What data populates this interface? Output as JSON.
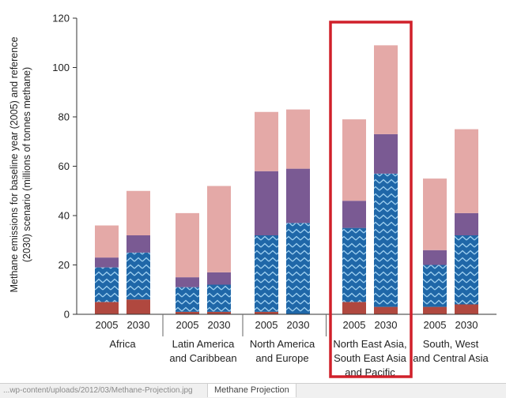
{
  "chart_data": {
    "type": "stacked-bar",
    "ylabel_lines": [
      "Methane emissions for baseline year (2005) and reference",
      "(2030) scenario (millions of tonnes methane)"
    ],
    "ylim": [
      0,
      120
    ],
    "yticks": [
      0,
      20,
      40,
      60,
      80,
      100,
      120
    ],
    "layers": [
      {
        "name": "layer-1",
        "color": "#b0483f"
      },
      {
        "name": "layer-2",
        "color": "#1f67a8",
        "pattern": "chevron"
      },
      {
        "name": "layer-3",
        "color": "#7a5a93"
      },
      {
        "name": "layer-4",
        "color": "#e4a9a7"
      }
    ],
    "groups": [
      {
        "label_lines": [
          "Africa"
        ],
        "bars": [
          {
            "year": "2005",
            "values": [
              5,
              14,
              4,
              13
            ]
          },
          {
            "year": "2030",
            "values": [
              6,
              19,
              7,
              18
            ]
          }
        ]
      },
      {
        "label_lines": [
          "Latin America",
          "and Caribbean"
        ],
        "bars": [
          {
            "year": "2005",
            "values": [
              1,
              10,
              4,
              26
            ]
          },
          {
            "year": "2030",
            "values": [
              1,
              11,
              5,
              35
            ]
          }
        ]
      },
      {
        "label_lines": [
          "North America",
          "and Europe"
        ],
        "bars": [
          {
            "year": "2005",
            "values": [
              1,
              31,
              26,
              24
            ]
          },
          {
            "year": "2030",
            "values": [
              0,
              37,
              22,
              24
            ]
          }
        ]
      },
      {
        "label_lines": [
          "North East Asia,",
          "South East Asia",
          "and Pacific"
        ],
        "highlight": true,
        "bars": [
          {
            "year": "2005",
            "values": [
              5,
              30,
              11,
              33
            ]
          },
          {
            "year": "2030",
            "values": [
              3,
              54,
              16,
              36
            ]
          }
        ]
      },
      {
        "label_lines": [
          "South, West",
          "and Central Asia"
        ],
        "bars": [
          {
            "year": "2005",
            "values": [
              3,
              17,
              6,
              29
            ]
          },
          {
            "year": "2030",
            "values": [
              4,
              28,
              9,
              34
            ]
          }
        ]
      }
    ],
    "highlight_color": "#d0202a"
  },
  "footer": {
    "url": "...wp-content/uploads/2012/03/Methane-Projection.jpg",
    "tab_label": "Methane Projection"
  }
}
